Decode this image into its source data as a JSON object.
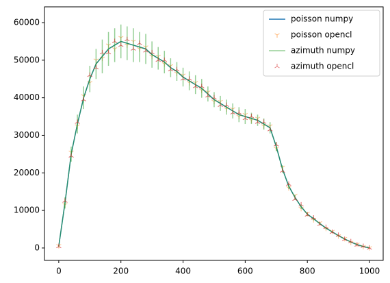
{
  "chart_data": {
    "type": "line",
    "x": [
      0,
      20,
      40,
      60,
      80,
      100,
      120,
      140,
      160,
      180,
      200,
      220,
      240,
      260,
      280,
      300,
      320,
      340,
      360,
      380,
      400,
      420,
      440,
      460,
      480,
      500,
      520,
      540,
      560,
      580,
      600,
      620,
      640,
      660,
      680,
      700,
      720,
      740,
      760,
      780,
      800,
      820,
      840,
      860,
      880,
      900,
      920,
      940,
      960,
      980,
      1000
    ],
    "series": [
      {
        "name": "poisson numpy",
        "color": "#1f77b4",
        "style": "line",
        "values": [
          500,
          12000,
          25000,
          33000,
          40000,
          45000,
          49000,
          51000,
          53000,
          54000,
          55000,
          54500,
          54000,
          53500,
          53000,
          51500,
          50500,
          49500,
          48000,
          47000,
          45500,
          44500,
          43500,
          42500,
          41000,
          39500,
          38500,
          37500,
          36500,
          35500,
          35000,
          34500,
          34000,
          33000,
          32000,
          27000,
          21000,
          16500,
          13500,
          11000,
          9000,
          7800,
          6500,
          5300,
          4300,
          3300,
          2400,
          1600,
          900,
          400,
          0
        ]
      },
      {
        "name": "poisson opencl",
        "color": "#ff7f0e",
        "style": "tri_down",
        "values": [
          600,
          11500,
          25500,
          32500,
          40500,
          44000,
          50000,
          50500,
          54000,
          53000,
          56000,
          54000,
          55000,
          53000,
          53500,
          51000,
          51000,
          49000,
          48500,
          46500,
          46000,
          44000,
          44000,
          42000,
          41500,
          39000,
          39000,
          37000,
          37000,
          35000,
          35500,
          34000,
          34500,
          32500,
          32500,
          26500,
          21500,
          16000,
          14000,
          10500,
          9200,
          7500,
          6700,
          5200,
          4400,
          3200,
          2500,
          1500,
          1000,
          350,
          50
        ]
      },
      {
        "name": "azimuth numpy",
        "color": "#2ca02c",
        "style": "errorbar",
        "values": [
          500,
          12000,
          25000,
          33000,
          40000,
          45000,
          49000,
          51000,
          53000,
          54000,
          55000,
          54500,
          54000,
          53500,
          53000,
          51500,
          50500,
          49500,
          48000,
          47000,
          45500,
          44500,
          43500,
          42500,
          41000,
          39500,
          38500,
          37500,
          36500,
          35500,
          35000,
          34500,
          34000,
          33000,
          32000,
          27000,
          21000,
          16500,
          13500,
          11000,
          9000,
          7800,
          6500,
          5300,
          4300,
          3300,
          2400,
          1600,
          900,
          400,
          0
        ],
        "errors": [
          300,
          1500,
          2000,
          2500,
          3000,
          3500,
          4000,
          4500,
          4500,
          4500,
          4500,
          4500,
          4500,
          4000,
          4000,
          3500,
          3000,
          3000,
          2500,
          2500,
          2500,
          2500,
          2500,
          2500,
          2000,
          2000,
          2000,
          2000,
          2000,
          2000,
          2000,
          1500,
          1500,
          1500,
          1500,
          1200,
          1000,
          800,
          700,
          600,
          500,
          450,
          400,
          350,
          300,
          250,
          200,
          150,
          100,
          100,
          50
        ]
      },
      {
        "name": "azimuth opencl",
        "color": "#d62728",
        "style": "tri_up",
        "values": [
          400,
          12500,
          24500,
          33500,
          39500,
          46000,
          48000,
          52000,
          52000,
          55000,
          54000,
          55500,
          53000,
          54500,
          52500,
          52000,
          50000,
          50000,
          47500,
          47500,
          45000,
          45000,
          43000,
          43000,
          40500,
          40000,
          38000,
          38000,
          36000,
          36000,
          34500,
          35000,
          33500,
          33500,
          31500,
          27500,
          20500,
          17000,
          13000,
          11500,
          8800,
          8000,
          6300,
          5500,
          4200,
          3400,
          2300,
          1700,
          800,
          450,
          0
        ]
      }
    ],
    "xlim": [
      -46,
      1044
    ],
    "ylim": [
      -3300,
      64200
    ],
    "xticks": [
      0,
      200,
      400,
      600,
      800,
      1000
    ],
    "yticks": [
      0,
      10000,
      20000,
      30000,
      40000,
      50000,
      60000
    ],
    "legend": "upper right"
  }
}
